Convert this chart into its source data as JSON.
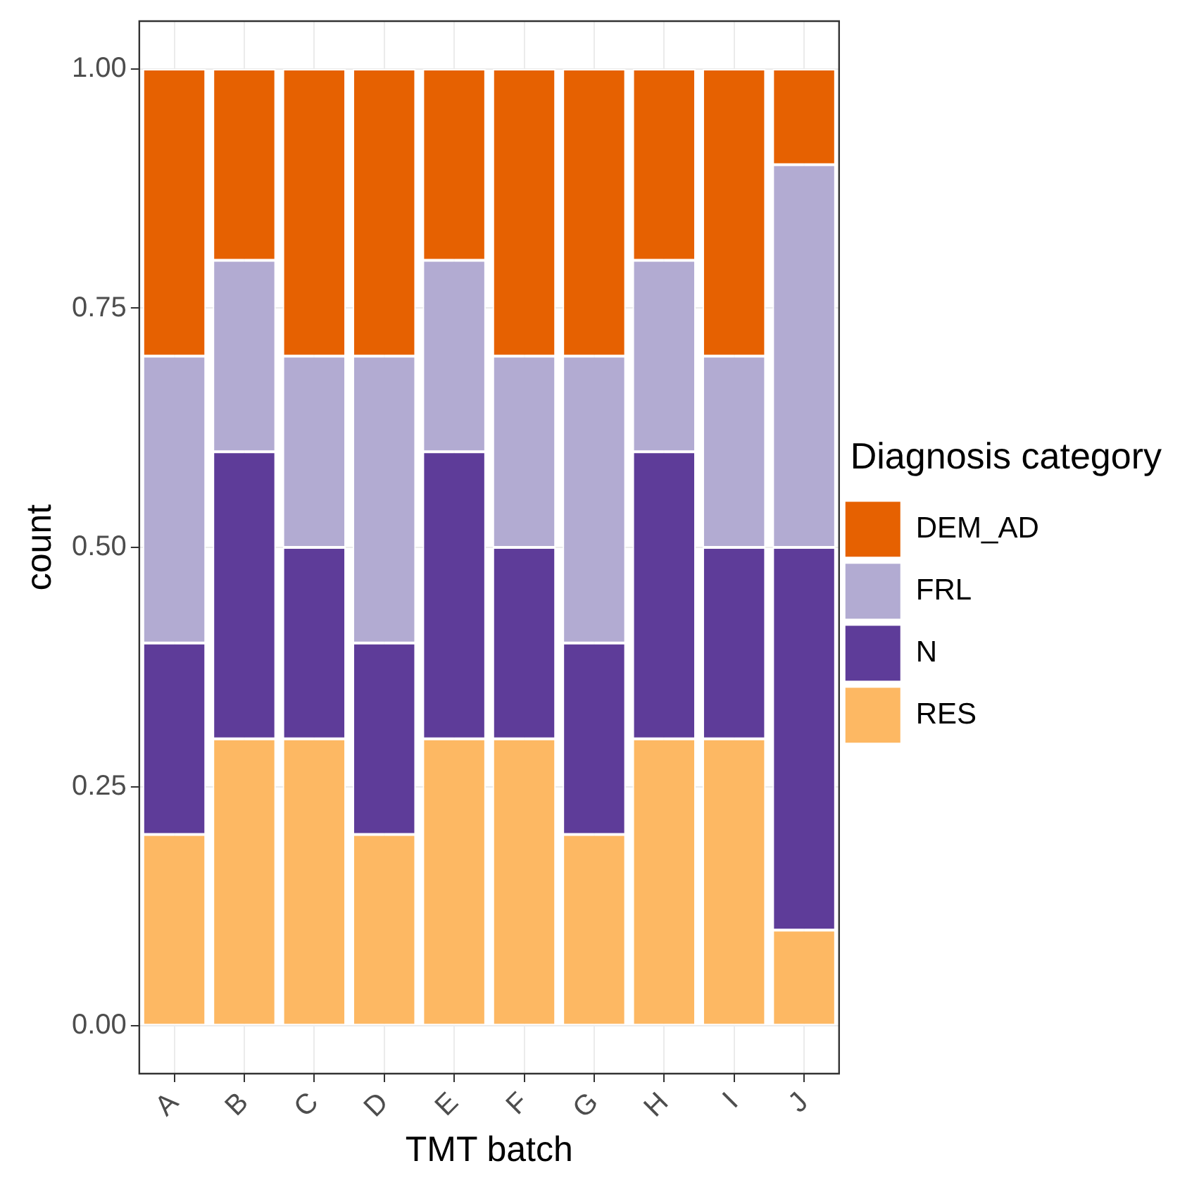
{
  "chart_data": {
    "type": "bar",
    "stacked": true,
    "xlabel": "TMT batch",
    "ylabel": "count",
    "legend_title": "Diagnosis category",
    "categories": [
      "A",
      "B",
      "C",
      "D",
      "E",
      "F",
      "G",
      "H",
      "I",
      "J"
    ],
    "series": [
      {
        "name": "RES",
        "color": "#fdb863",
        "values": [
          0.2,
          0.3,
          0.3,
          0.2,
          0.3,
          0.3,
          0.2,
          0.3,
          0.3,
          0.1
        ]
      },
      {
        "name": "N",
        "color": "#5e3c99",
        "values": [
          0.2,
          0.3,
          0.2,
          0.2,
          0.3,
          0.2,
          0.2,
          0.3,
          0.2,
          0.4
        ]
      },
      {
        "name": "FRL",
        "color": "#b2abd2",
        "values": [
          0.3,
          0.2,
          0.2,
          0.3,
          0.2,
          0.2,
          0.3,
          0.2,
          0.2,
          0.4
        ]
      },
      {
        "name": "DEM_AD",
        "color": "#e66101",
        "values": [
          0.3,
          0.2,
          0.3,
          0.3,
          0.2,
          0.3,
          0.3,
          0.2,
          0.3,
          0.1
        ]
      }
    ],
    "ylim": [
      -0.05,
      1.05
    ],
    "yticks": [
      {
        "value": 0,
        "label": "0.00"
      },
      {
        "value": 0.25,
        "label": "0.25"
      },
      {
        "value": 0.5,
        "label": "0.50"
      },
      {
        "value": 0.75,
        "label": "0.75"
      },
      {
        "value": 1,
        "label": "1.00"
      }
    ],
    "grid": true,
    "legend": "right"
  }
}
